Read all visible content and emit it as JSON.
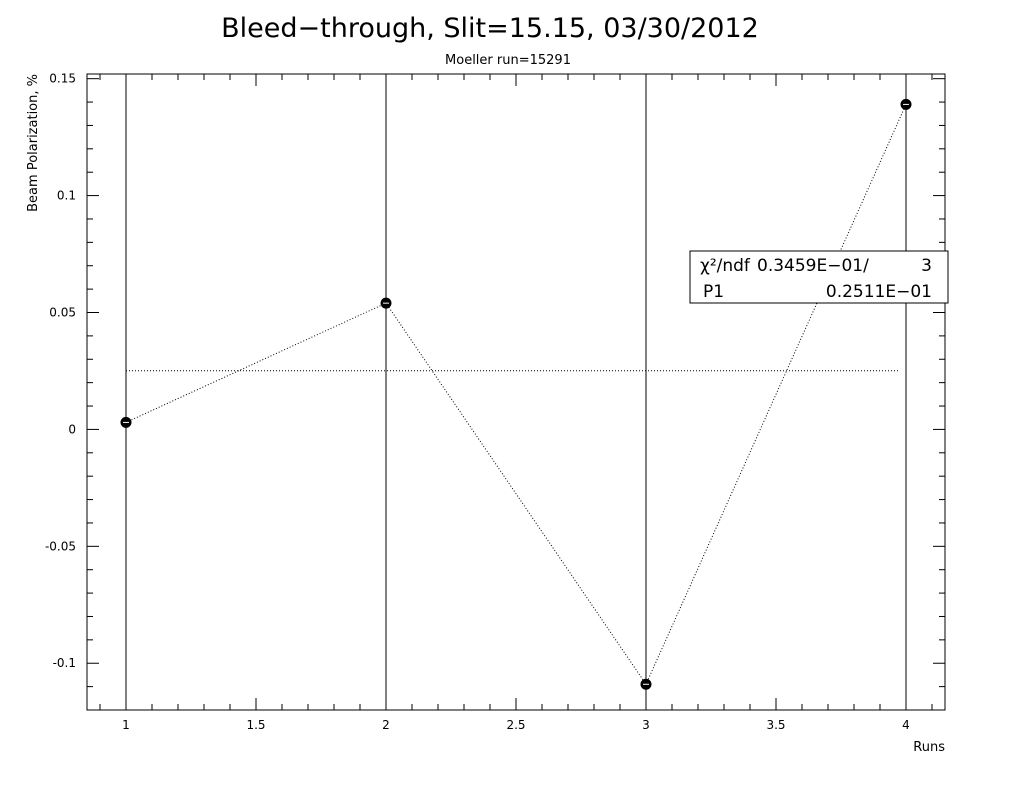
{
  "chart_data": {
    "type": "scatter",
    "title": "Bleed−through, Slit=15.15, 03/30/2012",
    "subtitle": "Moeller run=15291",
    "xlabel": "Runs",
    "ylabel": "Beam Polarization, %",
    "xlim": [
      0.85,
      4.15
    ],
    "ylim": [
      -0.12,
      0.152
    ],
    "x_ticks": [
      "1",
      "1.5",
      "2",
      "2.5",
      "3",
      "3.5",
      "4"
    ],
    "y_ticks": [
      "0.15",
      "0.1",
      "0.05",
      "0",
      "-0.05",
      "-0.1"
    ],
    "series": [
      {
        "x": [
          1,
          2,
          3,
          4
        ],
        "y": [
          0.003,
          0.054,
          -0.109,
          0.139
        ]
      }
    ],
    "vertical_lines_at": [
      1,
      2,
      3,
      4
    ],
    "fit": {
      "type": "constant",
      "p1": 0.0251,
      "x_range": [
        1,
        3.97
      ]
    },
    "stats_box": {
      "row1_label": "χ²/ndf",
      "row1_value": "0.3459E−01/",
      "row1_ndf": "3",
      "row2_label": "P1",
      "row2_value": "0.2511E−01"
    }
  }
}
